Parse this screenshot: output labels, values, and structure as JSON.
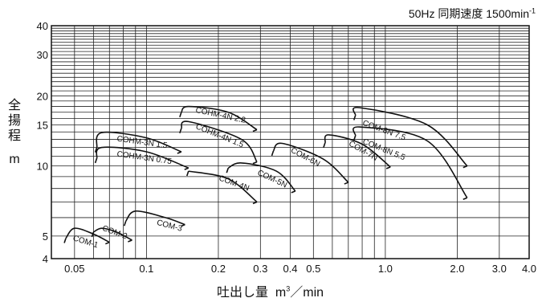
{
  "header": {
    "spec_text": "50Hz 同期速度 1500min",
    "spec_sup": "-1"
  },
  "axes": {
    "y_label_chars": [
      "全",
      "揚",
      "程"
    ],
    "y_unit": "m",
    "x_label_prefix": "吐出し量",
    "x_unit_base": "m",
    "x_unit_sup": "3",
    "x_unit_suffix": "／min"
  },
  "chart_data": {
    "type": "line",
    "title": "",
    "xscale": "log",
    "yscale": "log",
    "xlim": [
      0.04,
      4.0
    ],
    "ylim": [
      4,
      40
    ],
    "grid": true,
    "x_ticks": [
      {
        "value": 0.05,
        "label": "0.05"
      },
      {
        "value": 0.1,
        "label": "0.1"
      },
      {
        "value": 0.2,
        "label": "0.2"
      },
      {
        "value": 0.3,
        "label": "0.3"
      },
      {
        "value": 0.4,
        "label": "0.4"
      },
      {
        "value": 0.5,
        "label": "0.5"
      },
      {
        "value": 1.0,
        "label": "1.0"
      },
      {
        "value": 2.0,
        "label": "2.0"
      },
      {
        "value": 3.0,
        "label": "3.0"
      },
      {
        "value": 4.0,
        "label": "4.0"
      }
    ],
    "y_ticks": [
      {
        "value": 4,
        "label": "4"
      },
      {
        "value": 5,
        "label": "5"
      },
      {
        "value": 10,
        "label": "10"
      },
      {
        "value": 15,
        "label": "15"
      },
      {
        "value": 20,
        "label": "20"
      },
      {
        "value": 30,
        "label": "30"
      },
      {
        "value": 40,
        "label": "40"
      }
    ],
    "series": [
      {
        "name": "COM-1",
        "label_at": [
          0.049,
          4.8
        ],
        "label_rot": 17,
        "x": [
          0.046,
          0.05,
          0.06,
          0.07
        ],
        "y": [
          4.9,
          5.4,
          5.1,
          4.7
        ]
      },
      {
        "name": "COM-2",
        "label_at": [
          0.065,
          5.3
        ],
        "label_rot": 20,
        "x": [
          0.06,
          0.065,
          0.075,
          0.087
        ],
        "y": [
          5.2,
          5.4,
          5.2,
          4.8
        ]
      },
      {
        "name": "COM-3",
        "label_at": [
          0.11,
          5.6
        ],
        "label_rot": 15,
        "x": [
          0.082,
          0.09,
          0.12,
          0.145
        ],
        "y": [
          5.8,
          6.4,
          6.0,
          5.6
        ]
      },
      {
        "name": "COHM-3N 1.5",
        "label_at": [
          0.075,
          12.8
        ],
        "label_rot": 8,
        "x": [
          0.062,
          0.065,
          0.1,
          0.14
        ],
        "y": [
          12.0,
          13.9,
          13.2,
          11.5
        ]
      },
      {
        "name": "COHM-3N 0.75",
        "label_at": [
          0.075,
          11.0
        ],
        "label_rot": 8,
        "x": [
          0.062,
          0.065,
          0.1,
          0.15
        ],
        "y": [
          10.8,
          12.0,
          11.5,
          9.8
        ]
      },
      {
        "name": "COHM-4N 2.2",
        "label_at": [
          0.16,
          17.0
        ],
        "label_rot": 12,
        "x": [
          0.14,
          0.15,
          0.22,
          0.29
        ],
        "y": [
          17.0,
          18.0,
          17.0,
          14.3
        ]
      },
      {
        "name": "COHM-4N 1.5",
        "label_at": [
          0.16,
          14.5
        ],
        "label_rot": 22,
        "x": [
          0.14,
          0.15,
          0.25,
          0.29
        ],
        "y": [
          14.5,
          15.5,
          13.0,
          10.4
        ]
      },
      {
        "name": "COM-4N",
        "label_at": [
          0.2,
          8.7
        ],
        "label_rot": 20,
        "x": [
          0.15,
          0.22,
          0.29
        ],
        "y": [
          9.5,
          8.8,
          7.0
        ]
      },
      {
        "name": "COM-5N",
        "label_at": [
          0.29,
          9.2
        ],
        "label_rot": 25,
        "x": [
          0.22,
          0.25,
          0.35,
          0.42
        ],
        "y": [
          9.8,
          10.3,
          9.5,
          7.8
        ]
      },
      {
        "name": "COM-6N",
        "label_at": [
          0.4,
          11.5
        ],
        "label_rot": 28,
        "x": [
          0.34,
          0.37,
          0.55,
          0.7
        ],
        "y": [
          11.6,
          12.5,
          10.7,
          8.5
        ]
      },
      {
        "name": "COM-7N",
        "label_at": [
          0.7,
          12.3
        ],
        "label_rot": 30,
        "x": [
          0.56,
          0.58,
          0.8,
          1.05
        ],
        "y": [
          12.6,
          13.6,
          12.4,
          9.9
        ]
      },
      {
        "name": "COM-8N 7.5",
        "label_at": [
          0.8,
          15.0
        ],
        "label_rot": 20,
        "x": [
          0.75,
          0.78,
          1.5,
          2.2
        ],
        "y": [
          16.5,
          17.8,
          15.0,
          10.0
        ]
      },
      {
        "name": "COM-8N 5.5",
        "label_at": [
          0.8,
          12.5
        ],
        "label_rot": 22,
        "x": [
          0.75,
          0.78,
          1.5,
          2.2
        ],
        "y": [
          13.5,
          14.7,
          12.8,
          7.3
        ]
      }
    ]
  }
}
